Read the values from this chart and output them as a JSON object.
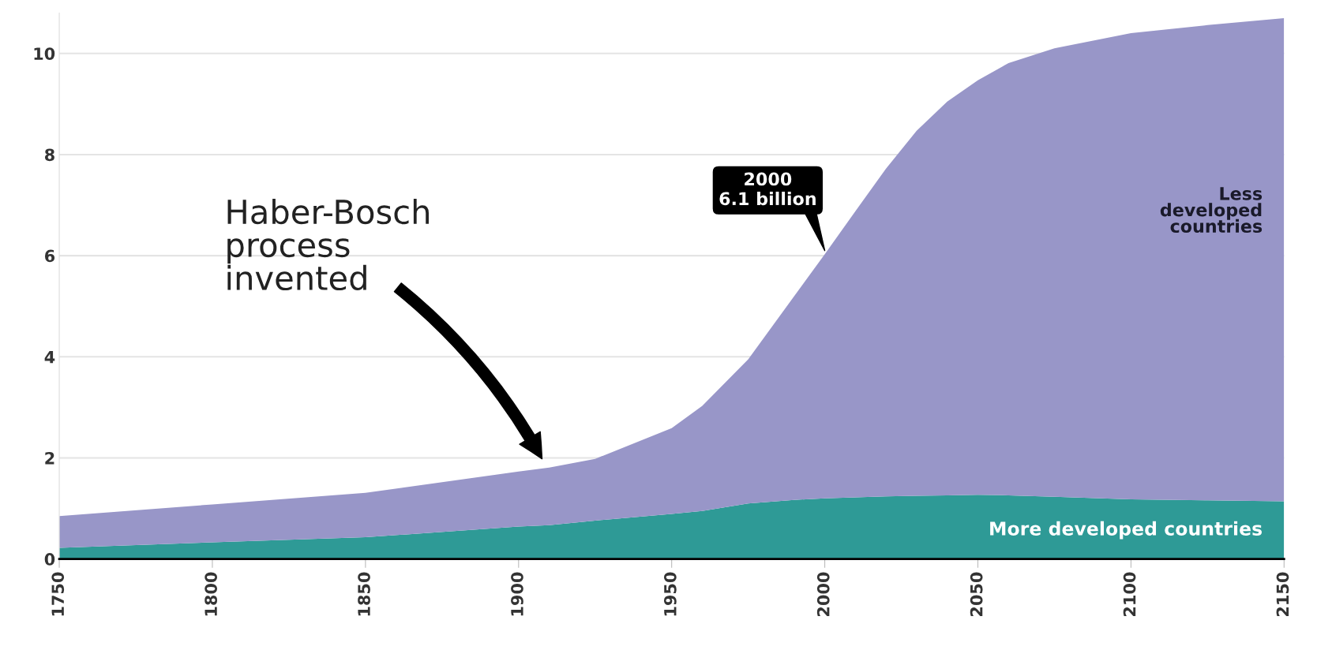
{
  "chart_data": {
    "type": "area",
    "stacked": true,
    "x": [
      1750,
      1800,
      1850,
      1900,
      1910,
      1925,
      1950,
      1960,
      1975,
      1990,
      2000,
      2010,
      2020,
      2030,
      2040,
      2050,
      2060,
      2075,
      2100,
      2125,
      2150
    ],
    "series": [
      {
        "name": "More developed countries",
        "color": "#2e9a96",
        "values": [
          0.22,
          0.33,
          0.43,
          0.64,
          0.67,
          0.76,
          0.89,
          0.95,
          1.1,
          1.17,
          1.2,
          1.22,
          1.24,
          1.25,
          1.26,
          1.27,
          1.26,
          1.23,
          1.18,
          1.16,
          1.14
        ]
      },
      {
        "name": "Less\ndeveloped\ncountries",
        "color": "#9896c8",
        "values": [
          0.63,
          0.75,
          0.88,
          1.09,
          1.14,
          1.22,
          1.7,
          2.08,
          2.85,
          4.03,
          4.83,
          5.66,
          6.48,
          7.22,
          7.79,
          8.2,
          8.55,
          8.87,
          9.22,
          9.4,
          9.56
        ]
      }
    ],
    "xlim": [
      1750,
      2150
    ],
    "xticks": [
      1750,
      1800,
      1850,
      1900,
      1950,
      2000,
      2050,
      2100,
      2150
    ],
    "ylim": [
      0,
      10.8
    ],
    "yticks": [
      0,
      2,
      4,
      6,
      8,
      10
    ],
    "grid": "y",
    "legend": false,
    "annotations": [
      {
        "text": "2000\n6.1 billion",
        "x": 2000,
        "y": 6.1
      },
      "Haber-Bosch\nprocess\ninvented"
    ]
  }
}
